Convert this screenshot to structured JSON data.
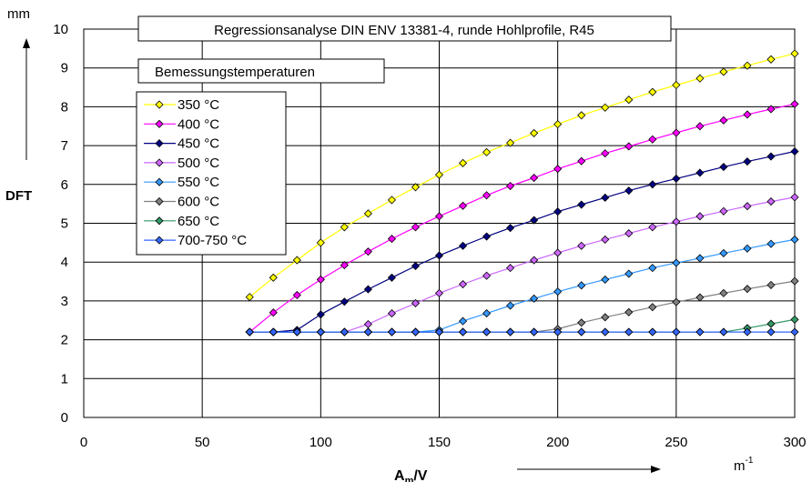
{
  "chart_data": {
    "type": "line",
    "title": "Regressionsanalyse DIN ENV 13381-4, runde Hohlprofile, R45",
    "legend_title": "Bemessungstemperaturen",
    "legend_placement": "top-left",
    "grid": true,
    "ylabel": "DFT",
    "yunit": "mm",
    "xlabel": {
      "main": "A",
      "sub": "m",
      "rest": "/V"
    },
    "xunit": {
      "base": "m",
      "sup": "-1"
    },
    "xlim": [
      0,
      300
    ],
    "ylim": [
      0,
      10
    ],
    "x_ticks": [
      0,
      50,
      100,
      150,
      200,
      250,
      300
    ],
    "y_ticks": [
      0,
      1,
      2,
      3,
      4,
      5,
      6,
      7,
      8,
      9,
      10
    ],
    "x": [
      70,
      80,
      90,
      100,
      110,
      120,
      130,
      140,
      150,
      160,
      170,
      180,
      190,
      200,
      210,
      220,
      230,
      240,
      250,
      260,
      270,
      280,
      290,
      300
    ],
    "series": [
      {
        "name": "350 °C",
        "color": "#ffff00",
        "values": [
          3.1,
          3.6,
          4.05,
          4.5,
          4.9,
          5.25,
          5.6,
          5.93,
          6.25,
          6.55,
          6.83,
          7.07,
          7.32,
          7.55,
          7.78,
          7.98,
          8.18,
          8.38,
          8.56,
          8.73,
          8.9,
          9.06,
          9.22,
          9.37
        ]
      },
      {
        "name": "400 °C",
        "color": "#ff00ff",
        "values": [
          2.2,
          2.7,
          3.15,
          3.55,
          3.92,
          4.27,
          4.6,
          4.9,
          5.18,
          5.45,
          5.72,
          5.96,
          6.17,
          6.4,
          6.6,
          6.8,
          6.98,
          7.16,
          7.33,
          7.5,
          7.65,
          7.8,
          7.94,
          8.07
        ]
      },
      {
        "name": "450 °C",
        "color": "#000080",
        "values": [
          2.2,
          2.2,
          2.25,
          2.65,
          2.98,
          3.3,
          3.6,
          3.9,
          4.17,
          4.42,
          4.66,
          4.88,
          5.08,
          5.3,
          5.48,
          5.66,
          5.84,
          6.0,
          6.15,
          6.3,
          6.45,
          6.59,
          6.72,
          6.85
        ]
      },
      {
        "name": "500 °C",
        "color": "#cc66ff",
        "values": [
          2.2,
          2.2,
          2.2,
          2.2,
          2.2,
          2.4,
          2.68,
          2.94,
          3.2,
          3.43,
          3.65,
          3.85,
          4.05,
          4.24,
          4.42,
          4.58,
          4.74,
          4.9,
          5.04,
          5.18,
          5.31,
          5.44,
          5.56,
          5.67
        ]
      },
      {
        "name": "550 °C",
        "color": "#3399ff",
        "values": [
          2.2,
          2.2,
          2.2,
          2.2,
          2.2,
          2.2,
          2.2,
          2.2,
          2.25,
          2.48,
          2.68,
          2.88,
          3.06,
          3.24,
          3.4,
          3.55,
          3.7,
          3.85,
          3.98,
          4.1,
          4.23,
          4.35,
          4.47,
          4.58
        ]
      },
      {
        "name": "600 °C",
        "color": "#808080",
        "values": [
          2.2,
          2.2,
          2.2,
          2.2,
          2.2,
          2.2,
          2.2,
          2.2,
          2.2,
          2.2,
          2.2,
          2.2,
          2.2,
          2.28,
          2.44,
          2.58,
          2.71,
          2.84,
          2.97,
          3.09,
          3.2,
          3.31,
          3.41,
          3.51
        ]
      },
      {
        "name": "650 °C",
        "color": "#339966",
        "values": [
          2.2,
          2.2,
          2.2,
          2.2,
          2.2,
          2.2,
          2.2,
          2.2,
          2.2,
          2.2,
          2.2,
          2.2,
          2.2,
          2.2,
          2.2,
          2.2,
          2.2,
          2.2,
          2.2,
          2.2,
          2.2,
          2.3,
          2.41,
          2.52
        ]
      },
      {
        "name": "700-750 °C",
        "color": "#3366ff",
        "values": [
          2.2,
          2.2,
          2.2,
          2.2,
          2.2,
          2.2,
          2.2,
          2.2,
          2.2,
          2.2,
          2.2,
          2.2,
          2.2,
          2.2,
          2.2,
          2.2,
          2.2,
          2.2,
          2.2,
          2.2,
          2.2,
          2.2,
          2.2,
          2.2
        ]
      }
    ]
  }
}
